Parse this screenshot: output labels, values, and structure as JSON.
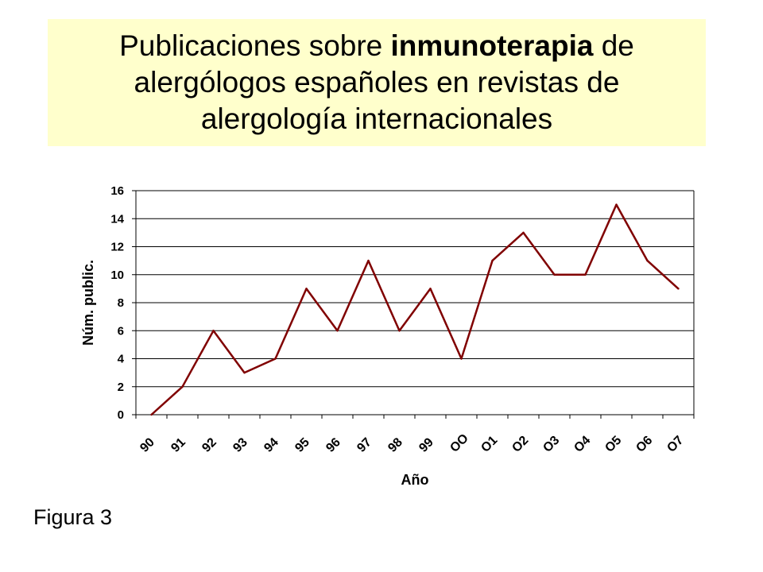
{
  "title": {
    "line1_pre": "Publicaciones sobre ",
    "line1_bold": "inmunoterapia",
    "line1_post": " de",
    "line2": "alergólogos españoles en revistas de",
    "line3": "alergología internacionales"
  },
  "caption": "Figura 3",
  "colors": {
    "title_background": "#ffffcc",
    "series_line": "#800000",
    "grid": "#000000"
  },
  "chart_data": {
    "type": "line",
    "categories": [
      "90",
      "91",
      "92",
      "93",
      "94",
      "95",
      "96",
      "97",
      "98",
      "99",
      "OO",
      "O1",
      "O2",
      "O3",
      "O4",
      "O5",
      "O6",
      "O7"
    ],
    "x": [
      1990,
      1991,
      1992,
      1993,
      1994,
      1995,
      1996,
      1997,
      1998,
      1999,
      2000,
      2001,
      2002,
      2003,
      2004,
      2005,
      2006,
      2007
    ],
    "values": [
      0,
      2,
      6,
      3,
      4,
      9,
      6,
      11,
      6,
      9,
      4,
      11,
      13,
      10,
      10,
      15,
      11,
      9
    ],
    "xlabel": "Año",
    "ylabel": "Núm. public.",
    "ylim": [
      0,
      16
    ],
    "yticks": [
      0,
      2,
      4,
      6,
      8,
      10,
      12,
      14,
      16
    ],
    "grid": "horizontal",
    "legend": "none"
  }
}
